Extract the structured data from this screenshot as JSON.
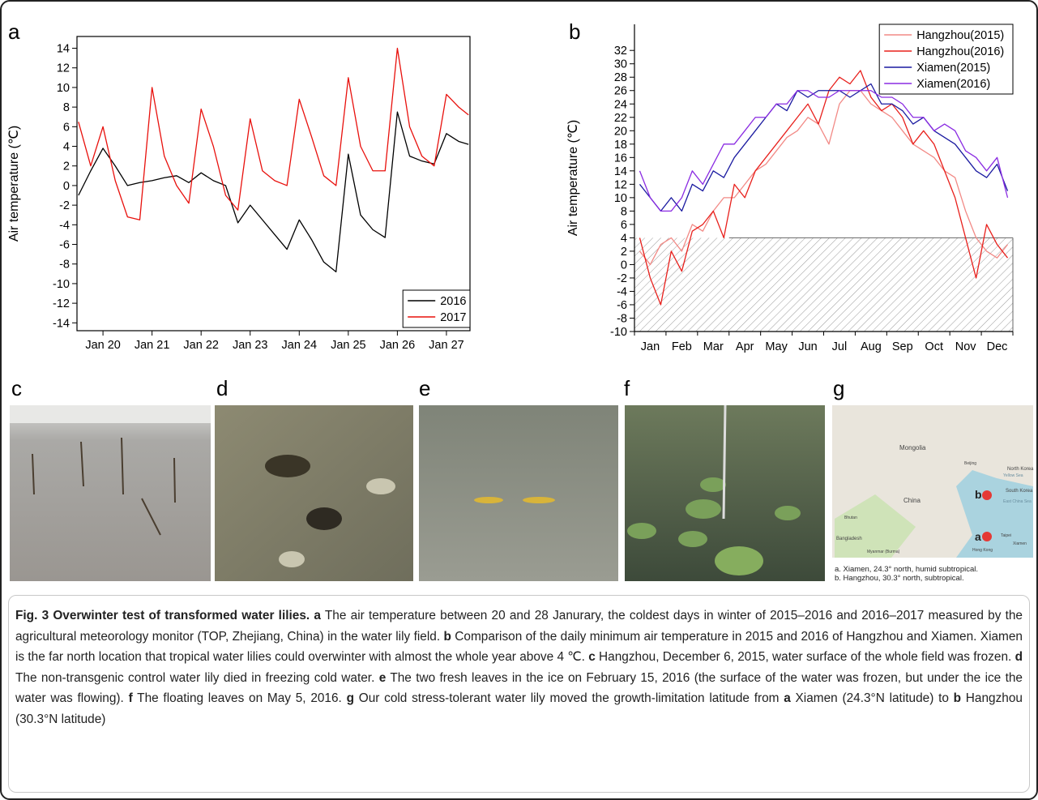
{
  "chart_data": [
    {
      "type": "line",
      "label": "a",
      "y_label": "Air temperature (℃)",
      "frame": "box",
      "legend_corner": "lower right",
      "x": [
        19.5,
        19.75,
        20,
        20.25,
        20.5,
        20.75,
        21,
        21.25,
        21.5,
        21.75,
        22,
        22.25,
        22.5,
        22.75,
        23,
        23.25,
        23.5,
        23.75,
        24,
        24.25,
        24.5,
        24.75,
        25,
        25.25,
        25.5,
        25.75,
        26,
        26.25,
        26.5,
        26.75,
        27,
        27.25,
        27.45
      ],
      "xlim": [
        19.47,
        27.48
      ],
      "xticks": [
        {
          "value": 20,
          "label": "Jan 20"
        },
        {
          "value": 21,
          "label": "Jan 21"
        },
        {
          "value": 22,
          "label": "Jan 22"
        },
        {
          "value": 23,
          "label": "Jan 23"
        },
        {
          "value": 24,
          "label": "Jan 24"
        },
        {
          "value": 25,
          "label": "Jan 25"
        },
        {
          "value": 26,
          "label": "Jan 26"
        },
        {
          "value": 27,
          "label": "Jan 27"
        }
      ],
      "ylim": [
        -14.8,
        15.2
      ],
      "yticks": [
        -14,
        -12,
        -10,
        -8,
        -6,
        -4,
        -2,
        0,
        2,
        4,
        6,
        8,
        10,
        12,
        14
      ],
      "series": [
        {
          "name": "2016",
          "color": "#000000",
          "values": [
            -1,
            1.5,
            3.8,
            2,
            0,
            0.3,
            0.5,
            0.8,
            1,
            0.3,
            1.3,
            0.5,
            0,
            -3.8,
            -2,
            -3.5,
            -5,
            -6.5,
            -3.5,
            -5.5,
            -7.8,
            -8.8,
            3.2,
            -3,
            -4.5,
            -5.3,
            7.5,
            3,
            2.5,
            2.2,
            5.3,
            4.5,
            4.2
          ]
        },
        {
          "name": "2017",
          "color": "#e8100c",
          "values": [
            6.5,
            2,
            6,
            0.5,
            -3.2,
            -3.5,
            10,
            3,
            0,
            -1.8,
            7.8,
            4,
            -1,
            -2.5,
            6.8,
            1.5,
            0.5,
            0,
            8.8,
            5,
            1,
            0,
            11,
            4,
            1.5,
            1.5,
            14,
            6,
            3,
            2,
            9.3,
            8,
            7.2
          ]
        }
      ]
    },
    {
      "type": "line",
      "label": "b",
      "y_label": "Air temperature (℃)",
      "frame": "axes",
      "legend_corner": "upper right",
      "threshold": 4,
      "categories": [
        null,
        "Jan",
        null,
        null,
        "Feb",
        null,
        null,
        "Mar",
        null,
        null,
        "Apr",
        null,
        null,
        "May",
        null,
        null,
        "Jun",
        null,
        null,
        "Jul",
        null,
        null,
        "Aug",
        null,
        null,
        "Sep",
        null,
        null,
        "Oct",
        null,
        null,
        "Nov",
        null,
        null,
        "Dec",
        null
      ],
      "ylim": [
        -10,
        35.9
      ],
      "yticks": [
        -10,
        -8,
        -6,
        -4,
        -2,
        0,
        2,
        4,
        6,
        8,
        10,
        12,
        14,
        16,
        18,
        20,
        22,
        24,
        26,
        28,
        30,
        32
      ],
      "series": [
        {
          "name": "Hangzhou(2015)",
          "color": "#f28a86",
          "values": [
            2,
            0,
            3,
            4,
            2,
            6,
            5,
            8,
            10,
            10,
            12,
            14,
            15,
            17,
            19,
            20,
            22,
            21,
            18,
            24,
            26,
            26,
            24,
            23,
            22,
            20,
            18,
            17,
            16,
            14,
            13,
            8,
            4,
            2,
            1,
            3
          ]
        },
        {
          "name": "Hangzhou(2016)",
          "color": "#e8201c",
          "values": [
            4,
            -2,
            -6,
            2,
            -1,
            5,
            6,
            8,
            4,
            12,
            10,
            14,
            16,
            18,
            20,
            22,
            24,
            21,
            26,
            28,
            27,
            29,
            25,
            23,
            24,
            22,
            18,
            20,
            18,
            14,
            10,
            4,
            -2,
            6,
            3,
            1
          ]
        },
        {
          "name": "Xiamen(2015)",
          "color": "#1a1aa0",
          "values": [
            12,
            10,
            8,
            10,
            8,
            12,
            11,
            14,
            13,
            16,
            18,
            20,
            22,
            24,
            23,
            26,
            25,
            26,
            26,
            26,
            25,
            26,
            27,
            24,
            24,
            23,
            21,
            22,
            20,
            19,
            18,
            16,
            14,
            13,
            15,
            11
          ]
        },
        {
          "name": "Xiamen(2016)",
          "color": "#8a2be2",
          "values": [
            14,
            10,
            8,
            8,
            10,
            14,
            12,
            15,
            18,
            18,
            20,
            22,
            22,
            24,
            24,
            26,
            26,
            25,
            25,
            26,
            26,
            26,
            26,
            25,
            25,
            24,
            22,
            22,
            20,
            21,
            20,
            17,
            16,
            14,
            16,
            10
          ]
        }
      ]
    }
  ],
  "photos": {
    "labels": [
      "c",
      "d",
      "e",
      "f",
      "g"
    ],
    "map_labels": [
      "Mongolia",
      "China",
      "North Korea",
      "South Korea",
      "Beijing",
      "Bangladesh",
      "Myanmar (Burma)",
      "Hong Kong",
      "Taipei",
      "Bhutan",
      "East China Sea",
      "Yellow Sea",
      "Xiamen",
      "a",
      "b"
    ],
    "map_notes": [
      "a. Xiamen, 24.3° north, humid subtropical.",
      "b. Hangzhou, 30.3° north, subtropical."
    ]
  },
  "caption": {
    "runs": [
      {
        "text": "Fig. 3 Overwinter test of transformed water lilies.",
        "bold": true
      },
      {
        "text": " ",
        "bold": false
      },
      {
        "text": "a",
        "bold": true
      },
      {
        "text": " The air temperature between 20 and 28 Janurary, the coldest days in winter of 2015–2016 and 2016–2017 measured by the agricultural meteorology monitor (TOP, Zhejiang, China) in the water lily field. ",
        "bold": false
      },
      {
        "text": "b",
        "bold": true
      },
      {
        "text": " Comparison of the daily minimum air temperature in 2015 and 2016 of Hangzhou and Xiamen. Xiamen is the far north location that tropical water lilies could overwinter with almost the whole year above 4 ℃. ",
        "bold": false
      },
      {
        "text": "c",
        "bold": true
      },
      {
        "text": " Hangzhou, December 6, 2015, water surface of the whole field was frozen. ",
        "bold": false
      },
      {
        "text": "d",
        "bold": true
      },
      {
        "text": " The non-transgenic control water lily died in freezing cold water. ",
        "bold": false
      },
      {
        "text": "e",
        "bold": true
      },
      {
        "text": " The two fresh leaves in the ice on February 15, 2016 (the surface of the water was frozen, but under the ice the water was flowing). ",
        "bold": false
      },
      {
        "text": "f",
        "bold": true
      },
      {
        "text": " The floating leaves on May 5, 2016. ",
        "bold": false
      },
      {
        "text": "g",
        "bold": true
      },
      {
        "text": " Our cold stress-tolerant water lily moved the growth-limitation latitude from ",
        "bold": false
      },
      {
        "text": "a",
        "bold": true
      },
      {
        "text": " Xiamen (24.3°N latitude) to ",
        "bold": false
      },
      {
        "text": "b",
        "bold": true
      },
      {
        "text": " Hangzhou (30.3°N latitude)",
        "bold": false
      }
    ]
  }
}
